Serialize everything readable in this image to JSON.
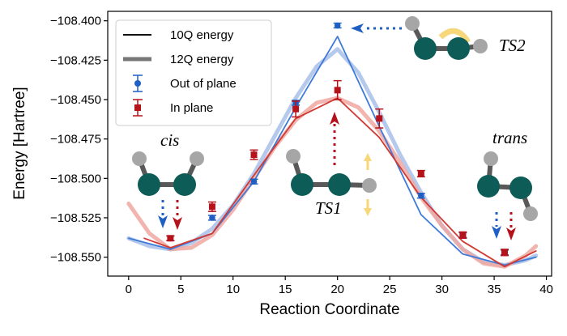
{
  "chart_data": {
    "type": "line",
    "xlabel": "Reaction Coordinate",
    "ylabel": "Energy [Hartree]",
    "xlim": [
      -2,
      40.5
    ],
    "ylim": [
      -108.562,
      -108.394
    ],
    "xticks": [
      0,
      5,
      10,
      15,
      20,
      25,
      30,
      35,
      40
    ],
    "xtick_labels": [
      "0",
      "5",
      "10",
      "15",
      "20",
      "25",
      "30",
      "35",
      "40"
    ],
    "yticks": [
      -108.4,
      -108.425,
      -108.45,
      -108.475,
      -108.5,
      -108.525,
      -108.55
    ],
    "ytick_labels": [
      "−108.400",
      "−108.425",
      "−108.450",
      "−108.475",
      "−108.500",
      "−108.525",
      "−108.550"
    ],
    "grid": false,
    "legend_position": "top-left",
    "colors": {
      "blue": "#1f5fc4",
      "red": "#b5121b",
      "blue_light": "#a8c0ea",
      "red_light": "#f0a7a0",
      "molecule": "#0d5c57",
      "hydrogen": "#a6a6a6",
      "bond": "#595959",
      "rotation": "#f6d77a"
    },
    "series": [
      {
        "name": "10Q energy",
        "style": "thin",
        "group": "out-of-plane",
        "color": "#3f7ad8",
        "x": [
          0,
          4,
          8,
          12,
          16,
          20,
          24,
          28,
          32,
          36,
          39
        ],
        "y": [
          -108.538,
          -108.545,
          -108.535,
          -108.502,
          -108.455,
          -108.41,
          -108.467,
          -108.523,
          -108.548,
          -108.555,
          -108.55
        ]
      },
      {
        "name": "10Q energy",
        "style": "thin",
        "group": "in-plane",
        "color": "#d03a34",
        "x": [
          1.5,
          4,
          8,
          12,
          16,
          20,
          24,
          28,
          32,
          36,
          39
        ],
        "y": [
          -108.538,
          -108.544,
          -108.535,
          -108.498,
          -108.462,
          -108.449,
          -108.474,
          -108.512,
          -108.54,
          -108.556,
          -108.546
        ]
      },
      {
        "name": "12Q energy",
        "style": "thick",
        "group": "out-of-plane",
        "color": "#a8c0ea",
        "x": [
          0,
          2,
          4,
          6,
          8,
          10,
          12,
          14,
          16,
          18,
          20,
          22,
          24,
          26,
          28,
          30,
          32,
          34,
          36,
          38,
          39
        ],
        "y": [
          -108.538,
          -108.543,
          -108.545,
          -108.541,
          -108.532,
          -108.517,
          -108.497,
          -108.473,
          -108.449,
          -108.429,
          -108.418,
          -108.433,
          -108.458,
          -108.485,
          -108.509,
          -108.53,
          -108.545,
          -108.553,
          -108.555,
          -108.552,
          -108.549
        ]
      },
      {
        "name": "12Q energy",
        "style": "thick",
        "group": "in-plane",
        "color": "#f0a7a0",
        "x": [
          0,
          2,
          4,
          6,
          8,
          10,
          12,
          14,
          16,
          18,
          20,
          22,
          24,
          26,
          28,
          30,
          32,
          34,
          36,
          38,
          39
        ],
        "y": [
          -108.516,
          -108.535,
          -108.545,
          -108.544,
          -108.536,
          -108.52,
          -108.5,
          -108.48,
          -108.463,
          -108.452,
          -108.449,
          -108.455,
          -108.47,
          -108.49,
          -108.512,
          -108.53,
          -108.545,
          -108.554,
          -108.556,
          -108.549,
          -108.543
        ]
      }
    ],
    "points": [
      {
        "name": "Out of plane",
        "marker": "circle",
        "color": "#1f5fc4",
        "x": [
          4,
          8,
          12,
          16,
          20,
          28,
          32,
          36
        ],
        "y": [
          -108.538,
          -108.525,
          -108.502,
          -108.452,
          -108.403,
          -108.511,
          -108.536,
          -108.547
        ],
        "err": [
          0.0015,
          0.0015,
          0.0015,
          0.0015,
          0.0015,
          0.0015,
          0.0015,
          0.0015
        ]
      },
      {
        "name": "In plane",
        "marker": "square",
        "color": "#b5121b",
        "x": [
          4,
          8,
          12,
          16,
          20,
          24,
          28,
          32,
          36
        ],
        "y": [
          -108.538,
          -108.518,
          -108.485,
          -108.456,
          -108.444,
          -108.462,
          -108.497,
          -108.536,
          -108.547
        ],
        "err": [
          0.0015,
          0.003,
          0.003,
          0.005,
          0.006,
          0.006,
          0.002,
          0.002,
          0.002
        ]
      }
    ],
    "legend": [
      {
        "label": "10Q energy",
        "kind": "line-thin"
      },
      {
        "label": "12Q energy",
        "kind": "line-thick"
      },
      {
        "label": "Out of plane",
        "kind": "errorbar-circle"
      },
      {
        "label": "In plane",
        "kind": "errorbar-square"
      }
    ],
    "annotations": {
      "cis": "cis",
      "trans": "trans",
      "ts1": "TS1",
      "ts2": "TS2"
    }
  }
}
